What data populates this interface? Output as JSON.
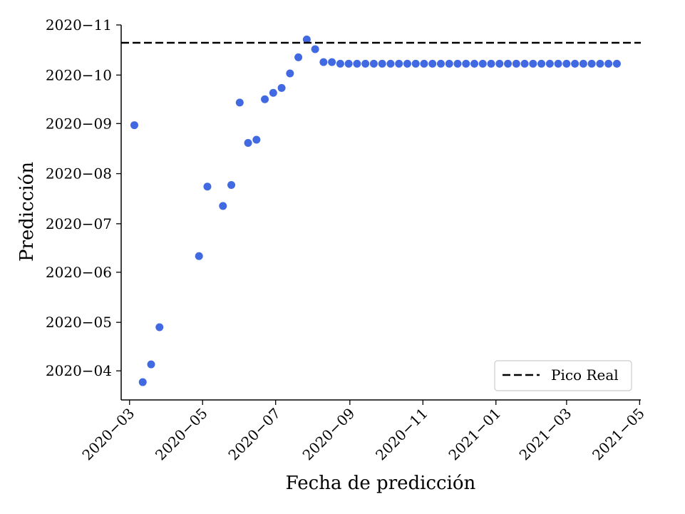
{
  "chart_data": {
    "type": "scatter",
    "xlabel": "Fecha de predicción",
    "ylabel": "Predicción",
    "x_ticks": [
      "2020-03",
      "2020-05",
      "2020-07",
      "2020-09",
      "2020-11",
      "2021-01",
      "2021-03",
      "2021-05"
    ],
    "y_ticks": [
      "2020-04",
      "2020-05",
      "2020-06",
      "2020-07",
      "2020-08",
      "2020-09",
      "2020-10",
      "2020-11"
    ],
    "xlim": [
      "2020-02-23",
      "2021-05-02"
    ],
    "ylim": [
      "2020-03-14",
      "2020-11-01"
    ],
    "reference_line": {
      "name": "Pico Real",
      "y": "2020-10-21",
      "style": "dashed",
      "color": "#000000"
    },
    "legend_label": "Pico Real",
    "legend_position": "bottom-right",
    "grid": false,
    "series": [
      {
        "color": "#4169e1",
        "x": [
          "2020-03-05",
          "2020-03-12",
          "2020-03-19",
          "2020-03-26",
          "2020-04-28",
          "2020-05-05",
          "2020-05-18",
          "2020-05-25",
          "2020-06-01",
          "2020-06-08",
          "2020-06-15",
          "2020-06-22",
          "2020-06-29",
          "2020-07-06",
          "2020-07-13",
          "2020-07-20",
          "2020-07-27",
          "2020-08-03",
          "2020-08-10",
          "2020-08-17",
          "2020-08-24",
          "2020-08-31",
          "2020-09-07",
          "2020-09-14",
          "2020-09-21",
          "2020-09-28",
          "2020-10-05",
          "2020-10-12",
          "2020-10-19",
          "2020-10-26",
          "2020-11-02",
          "2020-11-09",
          "2020-11-16",
          "2020-11-23",
          "2020-11-30",
          "2020-12-07",
          "2020-12-14",
          "2020-12-21",
          "2020-12-28",
          "2021-01-04",
          "2021-01-11",
          "2021-01-18",
          "2021-01-25",
          "2021-02-01",
          "2021-02-08",
          "2021-02-15",
          "2021-02-22",
          "2021-03-01",
          "2021-03-08",
          "2021-03-15",
          "2021-03-22",
          "2021-03-29",
          "2021-04-05",
          "2021-04-12"
        ],
        "y": [
          "2020-08-31",
          "2020-03-25",
          "2020-04-05",
          "2020-04-28",
          "2020-06-11",
          "2020-07-24",
          "2020-07-12",
          "2020-07-25",
          "2020-09-14",
          "2020-08-20",
          "2020-08-22",
          "2020-09-16",
          "2020-09-20",
          "2020-09-23",
          "2020-10-02",
          "2020-10-12",
          "2020-10-23",
          "2020-10-17",
          "2020-10-09",
          "2020-10-09",
          "2020-10-08",
          "2020-10-08",
          "2020-10-08",
          "2020-10-08",
          "2020-10-08",
          "2020-10-08",
          "2020-10-08",
          "2020-10-08",
          "2020-10-08",
          "2020-10-08",
          "2020-10-08",
          "2020-10-08",
          "2020-10-08",
          "2020-10-08",
          "2020-10-08",
          "2020-10-08",
          "2020-10-08",
          "2020-10-08",
          "2020-10-08",
          "2020-10-08",
          "2020-10-08",
          "2020-10-08",
          "2020-10-08",
          "2020-10-08",
          "2020-10-08",
          "2020-10-08",
          "2020-10-08",
          "2020-10-08",
          "2020-10-08",
          "2020-10-08",
          "2020-10-08",
          "2020-10-08",
          "2020-10-08",
          "2020-10-08"
        ]
      }
    ]
  }
}
